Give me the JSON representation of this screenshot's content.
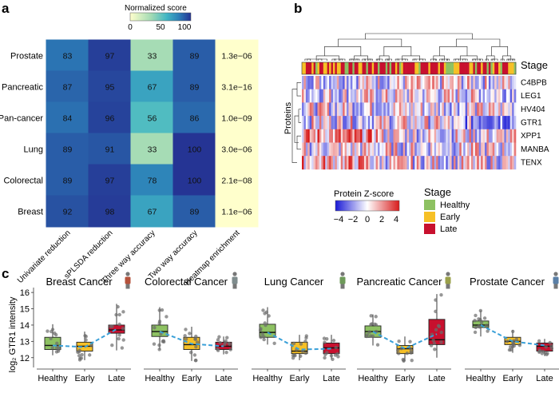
{
  "panel_labels": {
    "a": "a",
    "b": "b",
    "c": "c"
  },
  "colors": {
    "healthy": "#8dc162",
    "early": "#f6c026",
    "late": "#c8102e",
    "trend": "#3aa0d8",
    "heat_low": "#ffffcc",
    "heat_mid": "#41b6c4",
    "heat_high": "#253494",
    "z_low": "#1a1ad6",
    "z_mid": "#ffffff",
    "z_high": "#d81c1c"
  },
  "chart_data": [
    {
      "type": "heatmap",
      "colorbar": {
        "title": "Normalized score",
        "ticks": [
          "0",
          "50",
          "100"
        ],
        "range": [
          0,
          100
        ]
      },
      "rows": [
        "Prostate",
        "Pancreatic",
        "Pan-cancer",
        "Lung",
        "Colorectal",
        "Breast"
      ],
      "columns": [
        "Univariate reduction",
        "sPLSDA reduction",
        "Three way accuracy",
        "Two way accuracy",
        "Heatmap enrichment"
      ],
      "values": [
        [
          83,
          97,
          33,
          89,
          null
        ],
        [
          87,
          95,
          67,
          89,
          null
        ],
        [
          84,
          96,
          56,
          86,
          null
        ],
        [
          89,
          91,
          33,
          100,
          null
        ],
        [
          89,
          97,
          78,
          100,
          null
        ],
        [
          92,
          98,
          67,
          89,
          null
        ]
      ],
      "enrichment": [
        "1.3e−06",
        "3.1e−16",
        "1.0e−09",
        "3.0e−06",
        "2.1e−08",
        "1.1e−06"
      ]
    },
    {
      "type": "heatmap",
      "ylabel": "Proteins",
      "annotation_label": "Stage",
      "rows": [
        "C4BPB",
        "LEG1",
        "HV404",
        "GTR1",
        "XPP1",
        "MANBA",
        "TENX"
      ],
      "colorbar": {
        "title": "Protein Z-score",
        "ticks": [
          "−4",
          "−2",
          "0",
          "2",
          "4"
        ],
        "range": [
          -4,
          4
        ]
      },
      "legend": {
        "title": "Stage",
        "entries": [
          "Healthy",
          "Early",
          "Late"
        ]
      }
    },
    {
      "type": "box",
      "ylabel": "log₂ GTR1 intensity",
      "yticks": [
        "12",
        "13",
        "14",
        "15",
        "16"
      ],
      "ylim": [
        11.4,
        16.3
      ],
      "categories": [
        "Healthy",
        "Early",
        "Late"
      ],
      "panels": [
        {
          "title": "Breast Cancer",
          "icon": "female-icon",
          "boxes": [
            [
              12.15,
              12.5,
              12.75,
              13.25,
              14.05
            ],
            [
              11.85,
              12.4,
              12.7,
              12.95,
              13.6
            ],
            [
              12.45,
              13.5,
              13.7,
              14.0,
              15.3
            ]
          ],
          "trend": [
            12.75,
            12.65,
            13.75
          ]
        },
        {
          "title": "Colorectal Cancer",
          "icon": "person-icon",
          "boxes": [
            [
              12.5,
              13.3,
              13.6,
              14.0,
              15.1
            ],
            [
              11.8,
              12.5,
              12.8,
              13.25,
              13.9
            ],
            [
              12.2,
              12.5,
              12.7,
              12.95,
              13.3
            ]
          ],
          "trend": [
            13.6,
            12.85,
            12.7
          ]
        },
        {
          "title": "Lung Cancer",
          "icon": "person-icon",
          "boxes": [
            [
              12.8,
              13.25,
              13.55,
              14.05,
              15.1
            ],
            [
              11.85,
              12.25,
              12.4,
              12.95,
              13.4
            ],
            [
              11.9,
              12.25,
              12.6,
              12.9,
              13.4
            ]
          ],
          "trend": [
            13.55,
            12.5,
            12.55
          ]
        },
        {
          "title": "Pancreatic Cancer",
          "icon": "person-icon",
          "boxes": [
            [
              12.75,
              13.25,
              13.6,
              13.95,
              14.65
            ],
            [
              11.8,
              12.25,
              12.55,
              12.75,
              13.3
            ],
            [
              12.0,
              12.8,
              13.1,
              14.35,
              15.9
            ]
          ],
          "trend": [
            13.6,
            12.55,
            13.45
          ]
        },
        {
          "title": "Prostate Cancer",
          "icon": "male-icon",
          "boxes": [
            [
              13.3,
              13.85,
              14.0,
              14.25,
              14.9
            ],
            [
              12.3,
              12.8,
              13.0,
              13.25,
              13.7
            ],
            [
              12.1,
              12.4,
              12.7,
              12.9,
              13.15
            ]
          ],
          "trend": [
            14.0,
            13.0,
            12.75
          ]
        }
      ]
    }
  ]
}
